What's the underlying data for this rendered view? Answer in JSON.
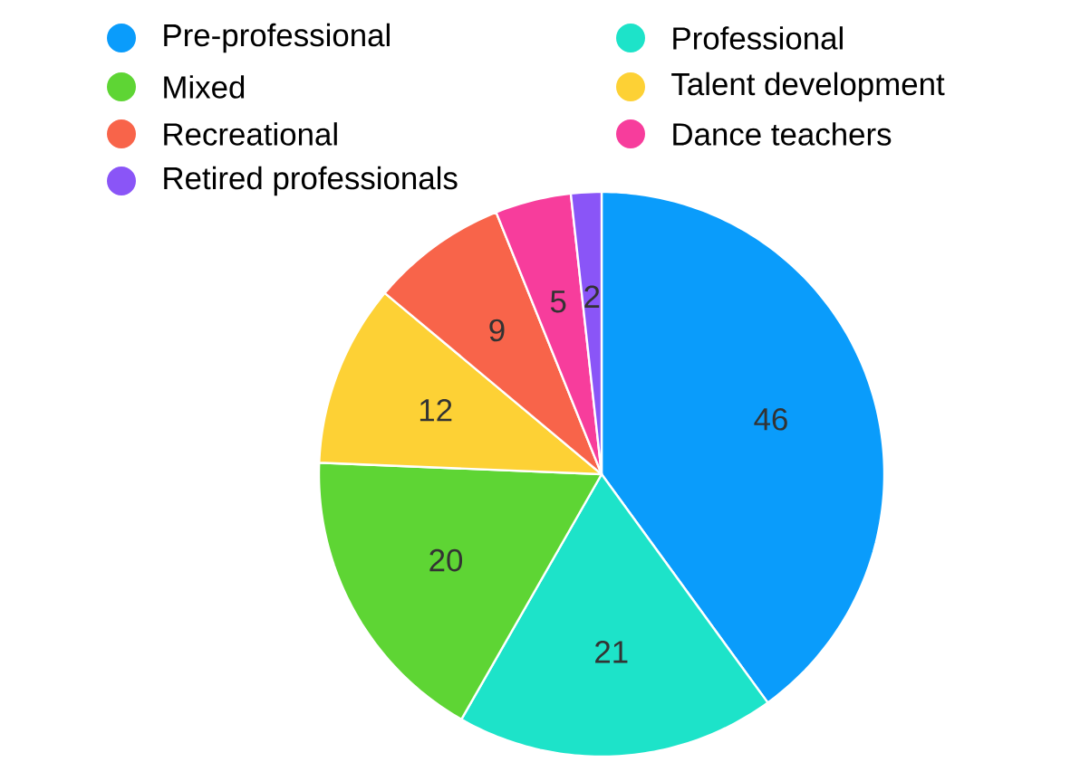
{
  "chart_data": {
    "type": "pie",
    "categories": [
      "Pre-professional",
      "Professional",
      "Mixed",
      "Talent development",
      "Recreational",
      "Dance teachers",
      "Retired professionals"
    ],
    "values": [
      46,
      21,
      20,
      12,
      9,
      5,
      2
    ],
    "colors": [
      "#0a9cfb",
      "#1de3c9",
      "#5ed534",
      "#fdd135",
      "#f8644a",
      "#f73d9c",
      "#8a55f7"
    ],
    "data_labels": true,
    "legend": "top"
  }
}
